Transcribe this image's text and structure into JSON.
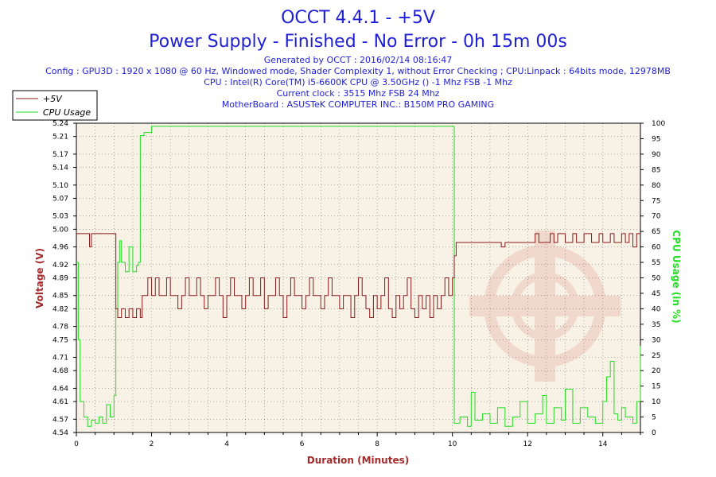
{
  "header": {
    "title": "OCCT 4.4.1 - +5V",
    "subtitle": "Power Supply - Finished - No Error - 0h 15m 00s",
    "lines": [
      "Generated by OCCT : 2016/02/14 08:16:47",
      "Config : GPU3D : 1920 x 1080 @ 60 Hz, Windowed mode, Shader Complexity 1, without Error Checking ; CPU:Linpack : 64bits mode, 12978MB",
      "CPU : Intel(R) Core(TM) i5-6600K CPU @ 3.50GHz () -1 Mhz FSB -1 Mhz",
      "Current clock : 3515 Mhz FSB 24 Mhz",
      "MotherBoard : ASUSTeK COMPUTER INC.: B150M PRO GAMING"
    ]
  },
  "colors": {
    "voltage": "#8b1a1a",
    "cpu": "#22dd22",
    "plot_bg": "#f8f1e6",
    "title": "#1f1fd6"
  },
  "chart_data": {
    "type": "line",
    "xlabel": "Duration (Minutes)",
    "ylabel_left": "Voltage (V)",
    "ylabel_right": "CPU Usage (in %)",
    "xlim": [
      0,
      15
    ],
    "ylim_left": [
      4.54,
      5.24
    ],
    "ylim_right": [
      0,
      100
    ],
    "x_ticks": [
      0,
      2,
      4,
      6,
      8,
      10,
      12,
      14
    ],
    "y_left_ticks": [
      "4.54",
      "4.57",
      "4.61",
      "4.64",
      "4.68",
      "4.71",
      "4.75",
      "4.78",
      "4.82",
      "4.85",
      "4.89",
      "4.92",
      "4.96",
      "5.00",
      "5.03",
      "5.07",
      "5.10",
      "5.14",
      "5.17",
      "5.21",
      "5.24"
    ],
    "y_right_ticks": [
      0,
      5,
      10,
      15,
      20,
      25,
      30,
      35,
      40,
      45,
      50,
      55,
      60,
      65,
      70,
      75,
      80,
      85,
      90,
      95,
      100
    ],
    "grid": true,
    "legend_position": "top-left",
    "series": [
      {
        "name": "+5V",
        "axis": "left",
        "points": [
          [
            0.0,
            4.99
          ],
          [
            0.1,
            4.99
          ],
          [
            0.2,
            4.99
          ],
          [
            0.3,
            4.99
          ],
          [
            0.35,
            4.96
          ],
          [
            0.4,
            4.99
          ],
          [
            0.5,
            4.99
          ],
          [
            0.6,
            4.99
          ],
          [
            0.7,
            4.99
          ],
          [
            0.8,
            4.99
          ],
          [
            0.9,
            4.99
          ],
          [
            1.0,
            4.99
          ],
          [
            1.05,
            4.82
          ],
          [
            1.1,
            4.8
          ],
          [
            1.2,
            4.82
          ],
          [
            1.3,
            4.8
          ],
          [
            1.4,
            4.82
          ],
          [
            1.5,
            4.8
          ],
          [
            1.6,
            4.82
          ],
          [
            1.7,
            4.8
          ],
          [
            1.75,
            4.85
          ],
          [
            1.8,
            4.85
          ],
          [
            1.9,
            4.89
          ],
          [
            2.0,
            4.85
          ],
          [
            2.1,
            4.89
          ],
          [
            2.2,
            4.85
          ],
          [
            2.3,
            4.85
          ],
          [
            2.4,
            4.89
          ],
          [
            2.5,
            4.85
          ],
          [
            2.6,
            4.85
          ],
          [
            2.7,
            4.82
          ],
          [
            2.8,
            4.85
          ],
          [
            2.9,
            4.89
          ],
          [
            3.0,
            4.85
          ],
          [
            3.1,
            4.85
          ],
          [
            3.2,
            4.89
          ],
          [
            3.3,
            4.85
          ],
          [
            3.4,
            4.82
          ],
          [
            3.5,
            4.85
          ],
          [
            3.6,
            4.85
          ],
          [
            3.7,
            4.89
          ],
          [
            3.8,
            4.85
          ],
          [
            3.9,
            4.8
          ],
          [
            4.0,
            4.85
          ],
          [
            4.1,
            4.89
          ],
          [
            4.2,
            4.85
          ],
          [
            4.3,
            4.85
          ],
          [
            4.4,
            4.82
          ],
          [
            4.5,
            4.85
          ],
          [
            4.6,
            4.89
          ],
          [
            4.7,
            4.85
          ],
          [
            4.8,
            4.85
          ],
          [
            4.9,
            4.89
          ],
          [
            5.0,
            4.82
          ],
          [
            5.1,
            4.85
          ],
          [
            5.2,
            4.85
          ],
          [
            5.3,
            4.89
          ],
          [
            5.4,
            4.85
          ],
          [
            5.5,
            4.8
          ],
          [
            5.6,
            4.85
          ],
          [
            5.7,
            4.89
          ],
          [
            5.8,
            4.85
          ],
          [
            5.9,
            4.85
          ],
          [
            6.0,
            4.82
          ],
          [
            6.1,
            4.85
          ],
          [
            6.2,
            4.89
          ],
          [
            6.3,
            4.85
          ],
          [
            6.4,
            4.85
          ],
          [
            6.5,
            4.82
          ],
          [
            6.6,
            4.85
          ],
          [
            6.7,
            4.89
          ],
          [
            6.8,
            4.85
          ],
          [
            6.9,
            4.85
          ],
          [
            7.0,
            4.82
          ],
          [
            7.1,
            4.85
          ],
          [
            7.2,
            4.85
          ],
          [
            7.3,
            4.8
          ],
          [
            7.4,
            4.85
          ],
          [
            7.5,
            4.89
          ],
          [
            7.6,
            4.85
          ],
          [
            7.7,
            4.82
          ],
          [
            7.8,
            4.8
          ],
          [
            7.9,
            4.85
          ],
          [
            8.0,
            4.82
          ],
          [
            8.1,
            4.85
          ],
          [
            8.2,
            4.89
          ],
          [
            8.3,
            4.82
          ],
          [
            8.4,
            4.8
          ],
          [
            8.5,
            4.85
          ],
          [
            8.6,
            4.82
          ],
          [
            8.7,
            4.85
          ],
          [
            8.8,
            4.89
          ],
          [
            8.9,
            4.82
          ],
          [
            9.0,
            4.8
          ],
          [
            9.1,
            4.85
          ],
          [
            9.2,
            4.82
          ],
          [
            9.3,
            4.85
          ],
          [
            9.4,
            4.8
          ],
          [
            9.5,
            4.85
          ],
          [
            9.6,
            4.82
          ],
          [
            9.7,
            4.85
          ],
          [
            9.8,
            4.89
          ],
          [
            9.9,
            4.85
          ],
          [
            10.0,
            4.89
          ],
          [
            10.05,
            4.94
          ],
          [
            10.1,
            4.97
          ],
          [
            10.5,
            4.97
          ],
          [
            11.0,
            4.97
          ],
          [
            11.2,
            4.97
          ],
          [
            11.3,
            4.96
          ],
          [
            11.4,
            4.97
          ],
          [
            12.0,
            4.97
          ],
          [
            12.2,
            4.99
          ],
          [
            12.3,
            4.97
          ],
          [
            12.5,
            4.97
          ],
          [
            12.6,
            4.99
          ],
          [
            12.7,
            4.97
          ],
          [
            12.8,
            4.99
          ],
          [
            13.0,
            4.97
          ],
          [
            13.2,
            4.99
          ],
          [
            13.3,
            4.97
          ],
          [
            13.5,
            4.99
          ],
          [
            13.7,
            4.97
          ],
          [
            13.9,
            4.99
          ],
          [
            14.0,
            4.97
          ],
          [
            14.2,
            4.99
          ],
          [
            14.3,
            4.97
          ],
          [
            14.5,
            4.99
          ],
          [
            14.6,
            4.97
          ],
          [
            14.7,
            4.99
          ],
          [
            14.8,
            4.96
          ],
          [
            14.9,
            4.99
          ],
          [
            15.0,
            4.99
          ]
        ]
      },
      {
        "name": "CPU Usage",
        "axis": "right",
        "points": [
          [
            0.0,
            55
          ],
          [
            0.05,
            30
          ],
          [
            0.1,
            10
          ],
          [
            0.2,
            5
          ],
          [
            0.3,
            2
          ],
          [
            0.4,
            4
          ],
          [
            0.5,
            3
          ],
          [
            0.6,
            5
          ],
          [
            0.7,
            3
          ],
          [
            0.8,
            9
          ],
          [
            0.9,
            5
          ],
          [
            1.0,
            12
          ],
          [
            1.05,
            40
          ],
          [
            1.1,
            55
          ],
          [
            1.15,
            62
          ],
          [
            1.2,
            55
          ],
          [
            1.3,
            52
          ],
          [
            1.4,
            60
          ],
          [
            1.5,
            52
          ],
          [
            1.6,
            54
          ],
          [
            1.65,
            55
          ],
          [
            1.7,
            96
          ],
          [
            1.8,
            97
          ],
          [
            2.0,
            99
          ],
          [
            2.5,
            99
          ],
          [
            3.0,
            99
          ],
          [
            3.5,
            99
          ],
          [
            4.0,
            99
          ],
          [
            4.5,
            99
          ],
          [
            5.0,
            99
          ],
          [
            5.5,
            99
          ],
          [
            6.0,
            99
          ],
          [
            6.5,
            99
          ],
          [
            7.0,
            99
          ],
          [
            7.5,
            99
          ],
          [
            8.0,
            99
          ],
          [
            8.5,
            99
          ],
          [
            9.0,
            99
          ],
          [
            9.5,
            99
          ],
          [
            9.9,
            99
          ],
          [
            10.0,
            99
          ],
          [
            10.05,
            3
          ],
          [
            10.2,
            5
          ],
          [
            10.4,
            2
          ],
          [
            10.5,
            13
          ],
          [
            10.6,
            4
          ],
          [
            10.8,
            6
          ],
          [
            11.0,
            3
          ],
          [
            11.2,
            8
          ],
          [
            11.4,
            2
          ],
          [
            11.6,
            5
          ],
          [
            11.8,
            10
          ],
          [
            12.0,
            3
          ],
          [
            12.2,
            6
          ],
          [
            12.4,
            12
          ],
          [
            12.5,
            3
          ],
          [
            12.7,
            8
          ],
          [
            12.9,
            4
          ],
          [
            13.0,
            14
          ],
          [
            13.2,
            3
          ],
          [
            13.4,
            8
          ],
          [
            13.6,
            5
          ],
          [
            13.8,
            3
          ],
          [
            14.0,
            10
          ],
          [
            14.1,
            18
          ],
          [
            14.2,
            23
          ],
          [
            14.3,
            6
          ],
          [
            14.4,
            4
          ],
          [
            14.5,
            8
          ],
          [
            14.6,
            5
          ],
          [
            14.8,
            3
          ],
          [
            14.9,
            10
          ],
          [
            15.0,
            28
          ]
        ]
      }
    ]
  }
}
